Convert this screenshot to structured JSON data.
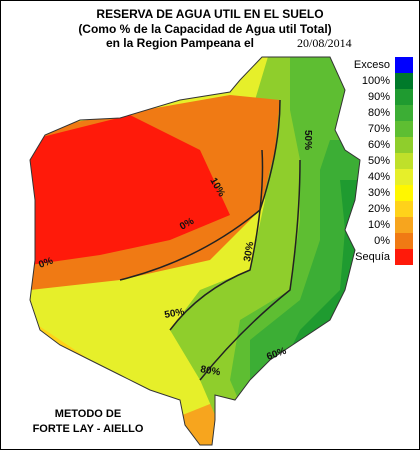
{
  "title": [
    "RESERVA DE AGUA UTIL EN EL SUELO",
    "(Como % de la Capacidad de  Agua util Total)",
    "en la Region Pampeana el",
    "20/08/2014"
  ],
  "legend": [
    {
      "label": "Exceso",
      "color": "#0000ff"
    },
    {
      "label": "100%",
      "color": "#007a2a"
    },
    {
      "label": "90%",
      "color": "#1f9b30"
    },
    {
      "label": "80%",
      "color": "#3cae35"
    },
    {
      "label": "70%",
      "color": "#5ebe32"
    },
    {
      "label": "60%",
      "color": "#8fce2c"
    },
    {
      "label": "50%",
      "color": "#bfe02a"
    },
    {
      "label": "40%",
      "color": "#e6ef2a"
    },
    {
      "label": "30%",
      "color": "#fff700"
    },
    {
      "label": "20%",
      "color": "#ffd21a"
    },
    {
      "label": "10%",
      "color": "#f7a51e"
    },
    {
      "label": "0%",
      "color": "#f07a14"
    },
    {
      "label": "Sequía",
      "color": "#ff1a0a"
    }
  ],
  "contour_labels": [
    "0%",
    "10%",
    "0%",
    "30%",
    "50%",
    "50%",
    "60%",
    "80%"
  ],
  "method": [
    "METODO DE",
    "FORTE LAY - AIELLO"
  ]
}
